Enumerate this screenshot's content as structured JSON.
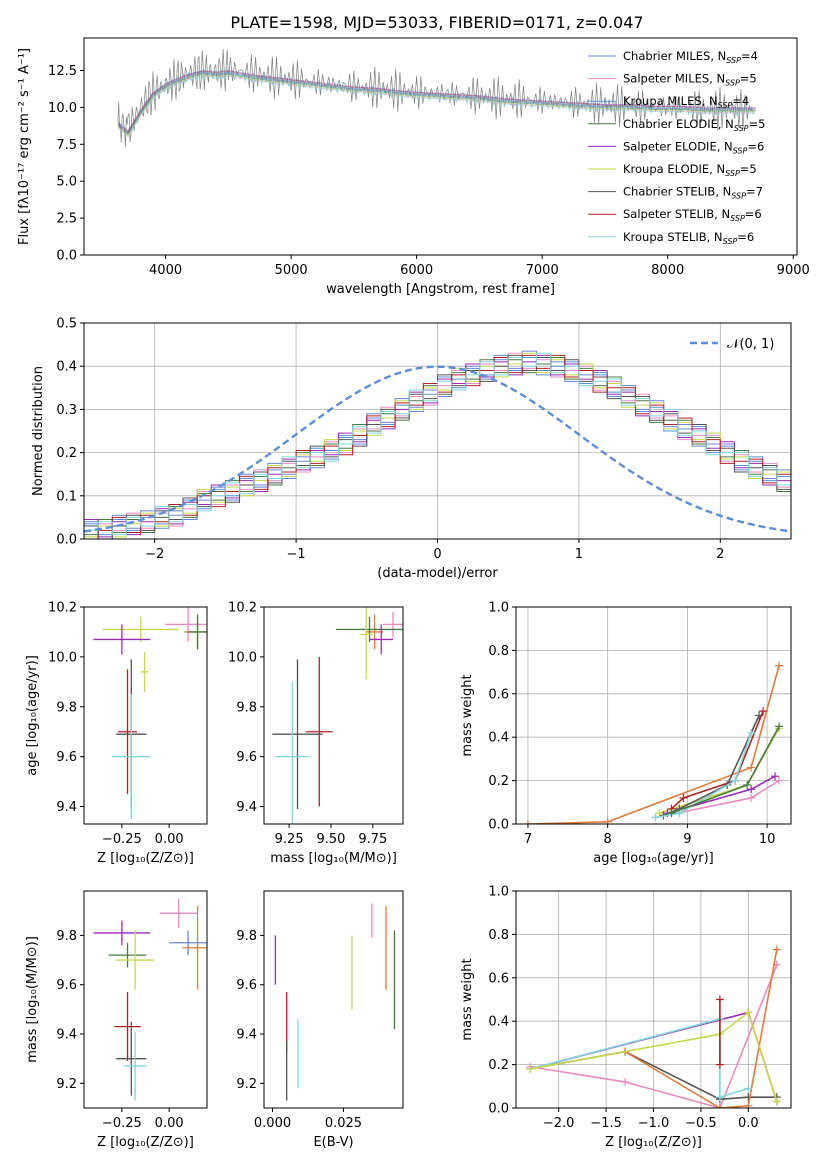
{
  "title": "PLATE=1598, MJD=53033, FIBERID=0171, z=0.047",
  "colors": {
    "Chabrier MILES": "#6a86d8",
    "Salpeter MILES": "#e88bc3",
    "Kroupa MILES": "#5b8fd6",
    "Chabrier ELODIE": "#4a7a42",
    "Salpeter ELODIE": "#9b2bb8",
    "Kroupa ELODIE": "#c8d84a",
    "Chabrier STELIB": "#555555",
    "Salpeter STELIB": "#b22222",
    "Kroupa STELIB": "#7ed6dc",
    "orange": "#e07b39",
    "yellowgreen": "#c2e36a",
    "gray": "#808080"
  },
  "legend_models": [
    {
      "pre": "Chabrier MILES, N",
      "sub": "SSP",
      "post": "=4"
    },
    {
      "pre": "Salpeter MILES, N",
      "sub": "SSP",
      "post": "=5"
    },
    {
      "pre": "Kroupa MILES, N",
      "sub": "SSP",
      "post": "=4"
    },
    {
      "pre": "Chabrier ELODIE, N",
      "sub": "SSP",
      "post": "=5"
    },
    {
      "pre": "Salpeter ELODIE, N",
      "sub": "SSP",
      "post": "=6"
    },
    {
      "pre": "Kroupa ELODIE, N",
      "sub": "SSP",
      "post": "=5"
    },
    {
      "pre": "Chabrier STELIB, N",
      "sub": "SSP",
      "post": "=7"
    },
    {
      "pre": "Salpeter STELIB, N",
      "sub": "SSP",
      "post": "=6"
    },
    {
      "pre": "Kroupa STELIB, N",
      "sub": "SSP",
      "post": "=6"
    }
  ],
  "legend_normal": "𝒩(0, 1)",
  "chart_data": [
    {
      "type": "line",
      "name": "spectrum",
      "xlabel": "wavelength [Angstrom, rest frame]",
      "ylabel": "Flux [fλ10⁻¹⁷ erg cm⁻² s⁻¹ A⁻¹]",
      "xlim": [
        3350,
        9030
      ],
      "ylim": [
        0,
        14.7
      ],
      "xticks": [
        "4000",
        "5000",
        "6000",
        "7000",
        "8000",
        "9000"
      ],
      "yticks": [
        "0.0",
        "2.5",
        "5.0",
        "7.5",
        "10.0",
        "12.5"
      ],
      "series": [
        {
          "name": "data",
          "color": "gray",
          "x": [
            3620,
            3700,
            3800,
            3900,
            4000,
            4100,
            4200,
            4300,
            4400,
            4500,
            4700,
            4900,
            5100,
            5300,
            5500,
            5700,
            5900,
            6100,
            6300,
            6500,
            6700,
            6900,
            7100,
            7300,
            7500,
            7700,
            7900,
            8100,
            8300,
            8500,
            8700
          ],
          "y": [
            9.0,
            8.5,
            10.0,
            11.0,
            11.5,
            12.0,
            12.3,
            12.5,
            12.4,
            12.6,
            12.3,
            12.0,
            11.8,
            11.6,
            11.4,
            11.3,
            11.1,
            11.0,
            10.9,
            10.8,
            10.6,
            10.5,
            10.4,
            10.3,
            10.2,
            10.1,
            10.0,
            10.0,
            9.9,
            9.9,
            9.8
          ]
        },
        {
          "name": "model",
          "color": "Kroupa STELIB",
          "x": [
            3620,
            3700,
            3800,
            3900,
            4000,
            4100,
            4200,
            4300,
            4400,
            4500,
            4700,
            4900,
            5100,
            5300,
            5500,
            5700,
            5900,
            6100,
            6300,
            6500,
            6700,
            6900,
            7100,
            7300,
            7500,
            7700,
            7900,
            8100,
            8300,
            8500,
            8700
          ],
          "y": [
            8.8,
            8.2,
            9.6,
            10.8,
            11.4,
            11.8,
            12.1,
            12.3,
            12.2,
            12.3,
            12.0,
            11.8,
            11.6,
            11.4,
            11.2,
            11.1,
            10.9,
            10.8,
            10.7,
            10.6,
            10.4,
            10.3,
            10.2,
            10.1,
            10.0,
            10.0,
            9.9,
            9.9,
            9.8,
            9.8,
            9.8
          ]
        }
      ]
    },
    {
      "type": "area",
      "name": "residual histogram",
      "xlabel": "(data-model)/error",
      "ylabel": "Normed distribution",
      "xlim": [
        -2.5,
        2.5
      ],
      "ylim": [
        0,
        0.5
      ],
      "xticks": [
        "−2",
        "−1",
        "0",
        "1",
        "2"
      ],
      "yticks": [
        "0.0",
        "0.1",
        "0.2",
        "0.3",
        "0.4",
        "0.5"
      ],
      "bin_width": 0.1,
      "bins_start": -2.5,
      "histogram": [
        0.02,
        0.02,
        0.03,
        0.035,
        0.04,
        0.05,
        0.055,
        0.07,
        0.09,
        0.1,
        0.11,
        0.125,
        0.135,
        0.15,
        0.165,
        0.18,
        0.19,
        0.205,
        0.22,
        0.24,
        0.265,
        0.28,
        0.3,
        0.32,
        0.335,
        0.355,
        0.37,
        0.38,
        0.39,
        0.4,
        0.405,
        0.41,
        0.405,
        0.4,
        0.39,
        0.38,
        0.365,
        0.35,
        0.33,
        0.31,
        0.295,
        0.275,
        0.255,
        0.24,
        0.22,
        0.2,
        0.18,
        0.165,
        0.15,
        0.135
      ],
      "normal_label": "𝒩(0, 1)"
    },
    {
      "type": "scatter",
      "name": "age vs Z",
      "xlabel": "Z [log₁₀(Z/Z⊙)]",
      "ylabel": "age  [log₁₀(age/yr)]",
      "xlim": [
        -0.45,
        0.2
      ],
      "ylim": [
        9.33,
        10.2
      ],
      "xticks": [
        "−0.25",
        "0.00"
      ],
      "yticks": [
        "9.4",
        "9.6",
        "9.8",
        "10.0",
        "10.2"
      ],
      "points": [
        {
          "c": "Salpeter MILES",
          "x": 0.1,
          "y": 10.13,
          "ex": 0.12,
          "ey": 0.07
        },
        {
          "c": "orange",
          "x": 0.15,
          "y": 10.1,
          "ex": 0.07,
          "ey": 0.07
        },
        {
          "c": "Chabrier ELODIE",
          "x": 0.15,
          "y": 10.1,
          "ex": 0.05,
          "ey": 0.07
        },
        {
          "c": "Kroupa ELODIE",
          "x": -0.15,
          "y": 10.11,
          "ex": 0.2,
          "ey": 0.05
        },
        {
          "c": "Salpeter ELODIE",
          "x": -0.25,
          "y": 10.07,
          "ex": 0.15,
          "ey": 0.06
        },
        {
          "c": "Kroupa ELODIE",
          "x": -0.13,
          "y": 9.94,
          "ex": 0.02,
          "ey": 0.08
        },
        {
          "c": "Salpeter STELIB",
          "x": -0.22,
          "y": 9.7,
          "ex": 0.05,
          "ey": 0.25
        },
        {
          "c": "Chabrier STELIB",
          "x": -0.2,
          "y": 9.69,
          "ex": 0.08,
          "ey": 0.3
        },
        {
          "c": "Kroupa STELIB",
          "x": -0.2,
          "y": 9.6,
          "ex": 0.1,
          "ey": 0.25
        }
      ]
    },
    {
      "type": "scatter",
      "name": "age vs mass",
      "xlabel": "mass [log₁₀(M/M⊙)]",
      "ylabel": "",
      "xlim": [
        9.1,
        9.93
      ],
      "ylim": [
        9.33,
        10.2
      ],
      "xticks": [
        "9.25",
        "9.50",
        "9.75"
      ],
      "yticks": [
        "9.4",
        "9.6",
        "9.8",
        "10.0",
        "10.2"
      ],
      "points": [
        {
          "c": "Salpeter MILES",
          "x": 9.87,
          "y": 10.13,
          "ex": 0.06,
          "ey": 0.05
        },
        {
          "c": "orange",
          "x": 9.76,
          "y": 10.1,
          "ex": 0.05,
          "ey": 0.07
        },
        {
          "c": "Chabrier ELODIE",
          "x": 9.73,
          "y": 10.11,
          "ex": 0.2,
          "ey": 0.05
        },
        {
          "c": "Kroupa ELODIE",
          "x": 9.71,
          "y": 10.09,
          "ex": 0.04,
          "ey": 0.18
        },
        {
          "c": "Salpeter ELODIE",
          "x": 9.8,
          "y": 10.07,
          "ex": 0.07,
          "ey": 0.06
        },
        {
          "c": "Salpeter STELIB",
          "x": 9.43,
          "y": 9.7,
          "ex": 0.08,
          "ey": 0.3
        },
        {
          "c": "Chabrier STELIB",
          "x": 9.3,
          "y": 9.69,
          "ex": 0.15,
          "ey": 0.3
        },
        {
          "c": "Kroupa STELIB",
          "x": 9.27,
          "y": 9.6,
          "ex": 0.1,
          "ey": 0.3
        }
      ]
    },
    {
      "type": "line",
      "name": "mass weight vs age",
      "xlabel": "age  [log₁₀(age/yr)]",
      "ylabel": "mass weight",
      "xlim": [
        6.85,
        10.3
      ],
      "ylim": [
        0,
        1.0
      ],
      "xticks": [
        "7",
        "8",
        "9",
        "10"
      ],
      "yticks": [
        "0.0",
        "0.2",
        "0.4",
        "0.6",
        "0.8",
        "1.0"
      ],
      "series": [
        {
          "c": "orange",
          "x": [
            7.0,
            8.0,
            9.8,
            10.15
          ],
          "y": [
            0.0,
            0.01,
            0.26,
            0.73
          ]
        },
        {
          "c": "Salpeter MILES",
          "x": [
            8.6,
            9.8,
            10.15
          ],
          "y": [
            0.03,
            0.12,
            0.2
          ]
        },
        {
          "c": "Kroupa ELODIE",
          "x": [
            8.65,
            9.75,
            10.15
          ],
          "y": [
            0.05,
            0.18,
            0.44
          ]
        },
        {
          "c": "Salpeter ELODIE",
          "x": [
            8.75,
            9.8,
            10.1
          ],
          "y": [
            0.05,
            0.16,
            0.22
          ]
        },
        {
          "c": "Salpeter STELIB",
          "x": [
            8.8,
            8.95,
            9.6,
            9.95
          ],
          "y": [
            0.07,
            0.12,
            0.2,
            0.52
          ]
        },
        {
          "c": "Chabrier STELIB",
          "x": [
            8.7,
            8.9,
            9.5,
            9.9
          ],
          "y": [
            0.04,
            0.07,
            0.18,
            0.5
          ]
        },
        {
          "c": "Kroupa STELIB",
          "x": [
            8.6,
            8.9,
            9.6,
            9.8
          ],
          "y": [
            0.03,
            0.05,
            0.2,
            0.42
          ]
        },
        {
          "c": "Chabrier ELODIE",
          "x": [
            8.8,
            9.75,
            10.15
          ],
          "y": [
            0.05,
            0.18,
            0.45
          ]
        }
      ]
    },
    {
      "type": "scatter",
      "name": "mass vs Z",
      "xlabel": "Z [log₁₀(Z/Z⊙)]",
      "ylabel": "mass [log₁₀(M/M⊙)]",
      "xlim": [
        -0.45,
        0.2
      ],
      "ylim": [
        9.1,
        9.98
      ],
      "xticks": [
        "−0.25",
        "0.00"
      ],
      "yticks": [
        "9.2",
        "9.4",
        "9.6",
        "9.8"
      ],
      "points": [
        {
          "c": "Salpeter MILES",
          "x": 0.05,
          "y": 9.89,
          "ex": 0.1,
          "ey": 0.06
        },
        {
          "c": "Chabrier MILES",
          "x": 0.1,
          "y": 9.77,
          "ex": 0.1,
          "ey": 0.05
        },
        {
          "c": "orange",
          "x": 0.15,
          "y": 9.75,
          "ex": 0.08,
          "ey": 0.17
        },
        {
          "c": "Salpeter ELODIE",
          "x": -0.25,
          "y": 9.81,
          "ex": 0.15,
          "ey": 0.05
        },
        {
          "c": "Chabrier ELODIE",
          "x": -0.22,
          "y": 9.72,
          "ex": 0.1,
          "ey": 0.05
        },
        {
          "c": "Kroupa ELODIE",
          "x": -0.18,
          "y": 9.7,
          "ex": 0.1,
          "ey": 0.12
        },
        {
          "c": "Salpeter STELIB",
          "x": -0.22,
          "y": 9.43,
          "ex": 0.07,
          "ey": 0.14
        },
        {
          "c": "Chabrier STELIB",
          "x": -0.2,
          "y": 9.3,
          "ex": 0.08,
          "ey": 0.15
        },
        {
          "c": "Kroupa STELIB",
          "x": -0.18,
          "y": 9.27,
          "ex": 0.06,
          "ey": 0.14
        }
      ]
    },
    {
      "type": "scatter",
      "name": "mass vs E(B-V)",
      "xlabel": "E(B-V)",
      "ylabel": "",
      "xlim": [
        -0.003,
        0.046
      ],
      "ylim": [
        9.1,
        9.98
      ],
      "xticks": [
        "0.000",
        "0.025"
      ],
      "yticks": [
        "9.2",
        "9.4",
        "9.6",
        "9.8"
      ],
      "points": [
        {
          "c": "Salpeter ELODIE",
          "x": 0.001,
          "y": 9.7,
          "ey": 0.1
        },
        {
          "c": "Salpeter STELIB",
          "x": 0.005,
          "y": 9.45,
          "ey": 0.12
        },
        {
          "c": "Chabrier STELIB",
          "x": 0.005,
          "y": 9.25,
          "ey": 0.12
        },
        {
          "c": "Kroupa STELIB",
          "x": 0.009,
          "y": 9.32,
          "ey": 0.14
        },
        {
          "c": "Kroupa ELODIE",
          "x": 0.028,
          "y": 9.65,
          "ey": 0.15
        },
        {
          "c": "Salpeter MILES",
          "x": 0.035,
          "y": 9.86,
          "ey": 0.07
        },
        {
          "c": "orange",
          "x": 0.04,
          "y": 9.75,
          "ey": 0.17
        },
        {
          "c": "Chabrier ELODIE",
          "x": 0.043,
          "y": 9.62,
          "ey": 0.2
        }
      ]
    },
    {
      "type": "line",
      "name": "mass weight vs Z",
      "xlabel": "Z [log₁₀(Z/Z⊙)]",
      "ylabel": "mass weight",
      "xlim": [
        -2.45,
        0.45
      ],
      "ylim": [
        0,
        1.0
      ],
      "xticks": [
        "−2.0",
        "−1.5",
        "−1.0",
        "−0.5",
        "0.0"
      ],
      "yticks": [
        "0.0",
        "0.2",
        "0.4",
        "0.6",
        "0.8",
        "1.0"
      ],
      "series": [
        {
          "c": "Salpeter MILES",
          "x": [
            -2.3,
            -1.3,
            -0.3,
            0.3
          ],
          "y": [
            0.19,
            0.12,
            0.0,
            0.66
          ]
        },
        {
          "c": "Salpeter ELODIE",
          "x": [
            -2.3,
            0.0,
            0.3
          ],
          "y": [
            0.18,
            0.44,
            0.03
          ]
        },
        {
          "c": "Chabrier STELIB",
          "x": [
            -2.3,
            -1.3,
            -0.3,
            0.0,
            0.3
          ],
          "y": [
            0.18,
            0.26,
            0.04,
            0.05,
            0.05
          ]
        },
        {
          "c": "orange",
          "x": [
            -1.3,
            -0.3,
            0.0,
            0.3
          ],
          "y": [
            0.26,
            0.0,
            0.01,
            0.73
          ]
        },
        {
          "c": "Kroupa STELIB",
          "x": [
            -2.3,
            -0.3,
            -0.3,
            0.0
          ],
          "y": [
            0.18,
            0.41,
            0.05,
            0.09
          ]
        },
        {
          "c": "Kroupa ELODIE",
          "x": [
            -2.3,
            -0.3,
            0.0,
            0.3
          ],
          "y": [
            0.18,
            0.34,
            0.44,
            0.03
          ]
        },
        {
          "c": "Salpeter STELIB",
          "x": [
            -0.3,
            -0.3
          ],
          "y": [
            0.5,
            0.2
          ]
        }
      ]
    }
  ]
}
